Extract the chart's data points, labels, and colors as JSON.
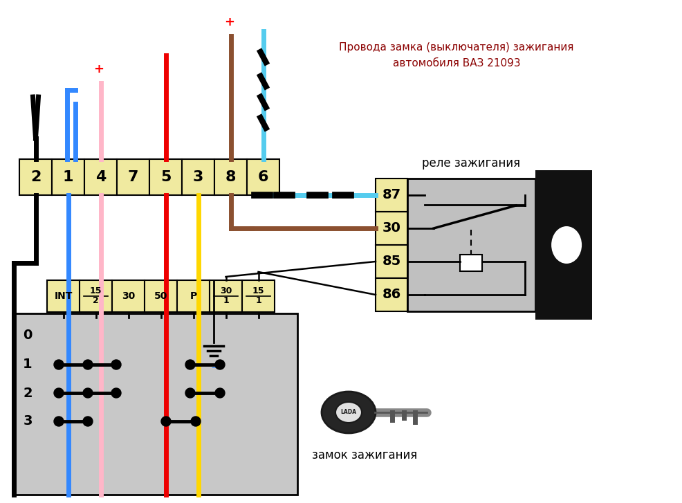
{
  "title_text": "Провода замка (выключателя) зажигания\nавтомобиля ВАЗ 21093",
  "title_color": "#8B0000",
  "bg_color": "#FFFFFF",
  "connector_fill": "#F0EAA0",
  "connector_edge": "#000000",
  "black_color": "#000000",
  "blue_color": "#3388FF",
  "pink_color": "#FFB6C8",
  "red_color": "#EE0000",
  "yellow_color": "#FFD700",
  "brown_color": "#8B5030",
  "cyan_color": "#55CCEE",
  "relay_labels": [
    "87",
    "30",
    "85",
    "86"
  ],
  "top_labels": [
    "2",
    "1",
    "4",
    "7",
    "5",
    "3",
    "8",
    "6"
  ],
  "bot_labels": [
    "INT",
    "15/2",
    "30",
    "50",
    "P",
    "30/1",
    "15/1"
  ],
  "relay_title": "реле зажигания",
  "switch_label": "замок зажигания"
}
